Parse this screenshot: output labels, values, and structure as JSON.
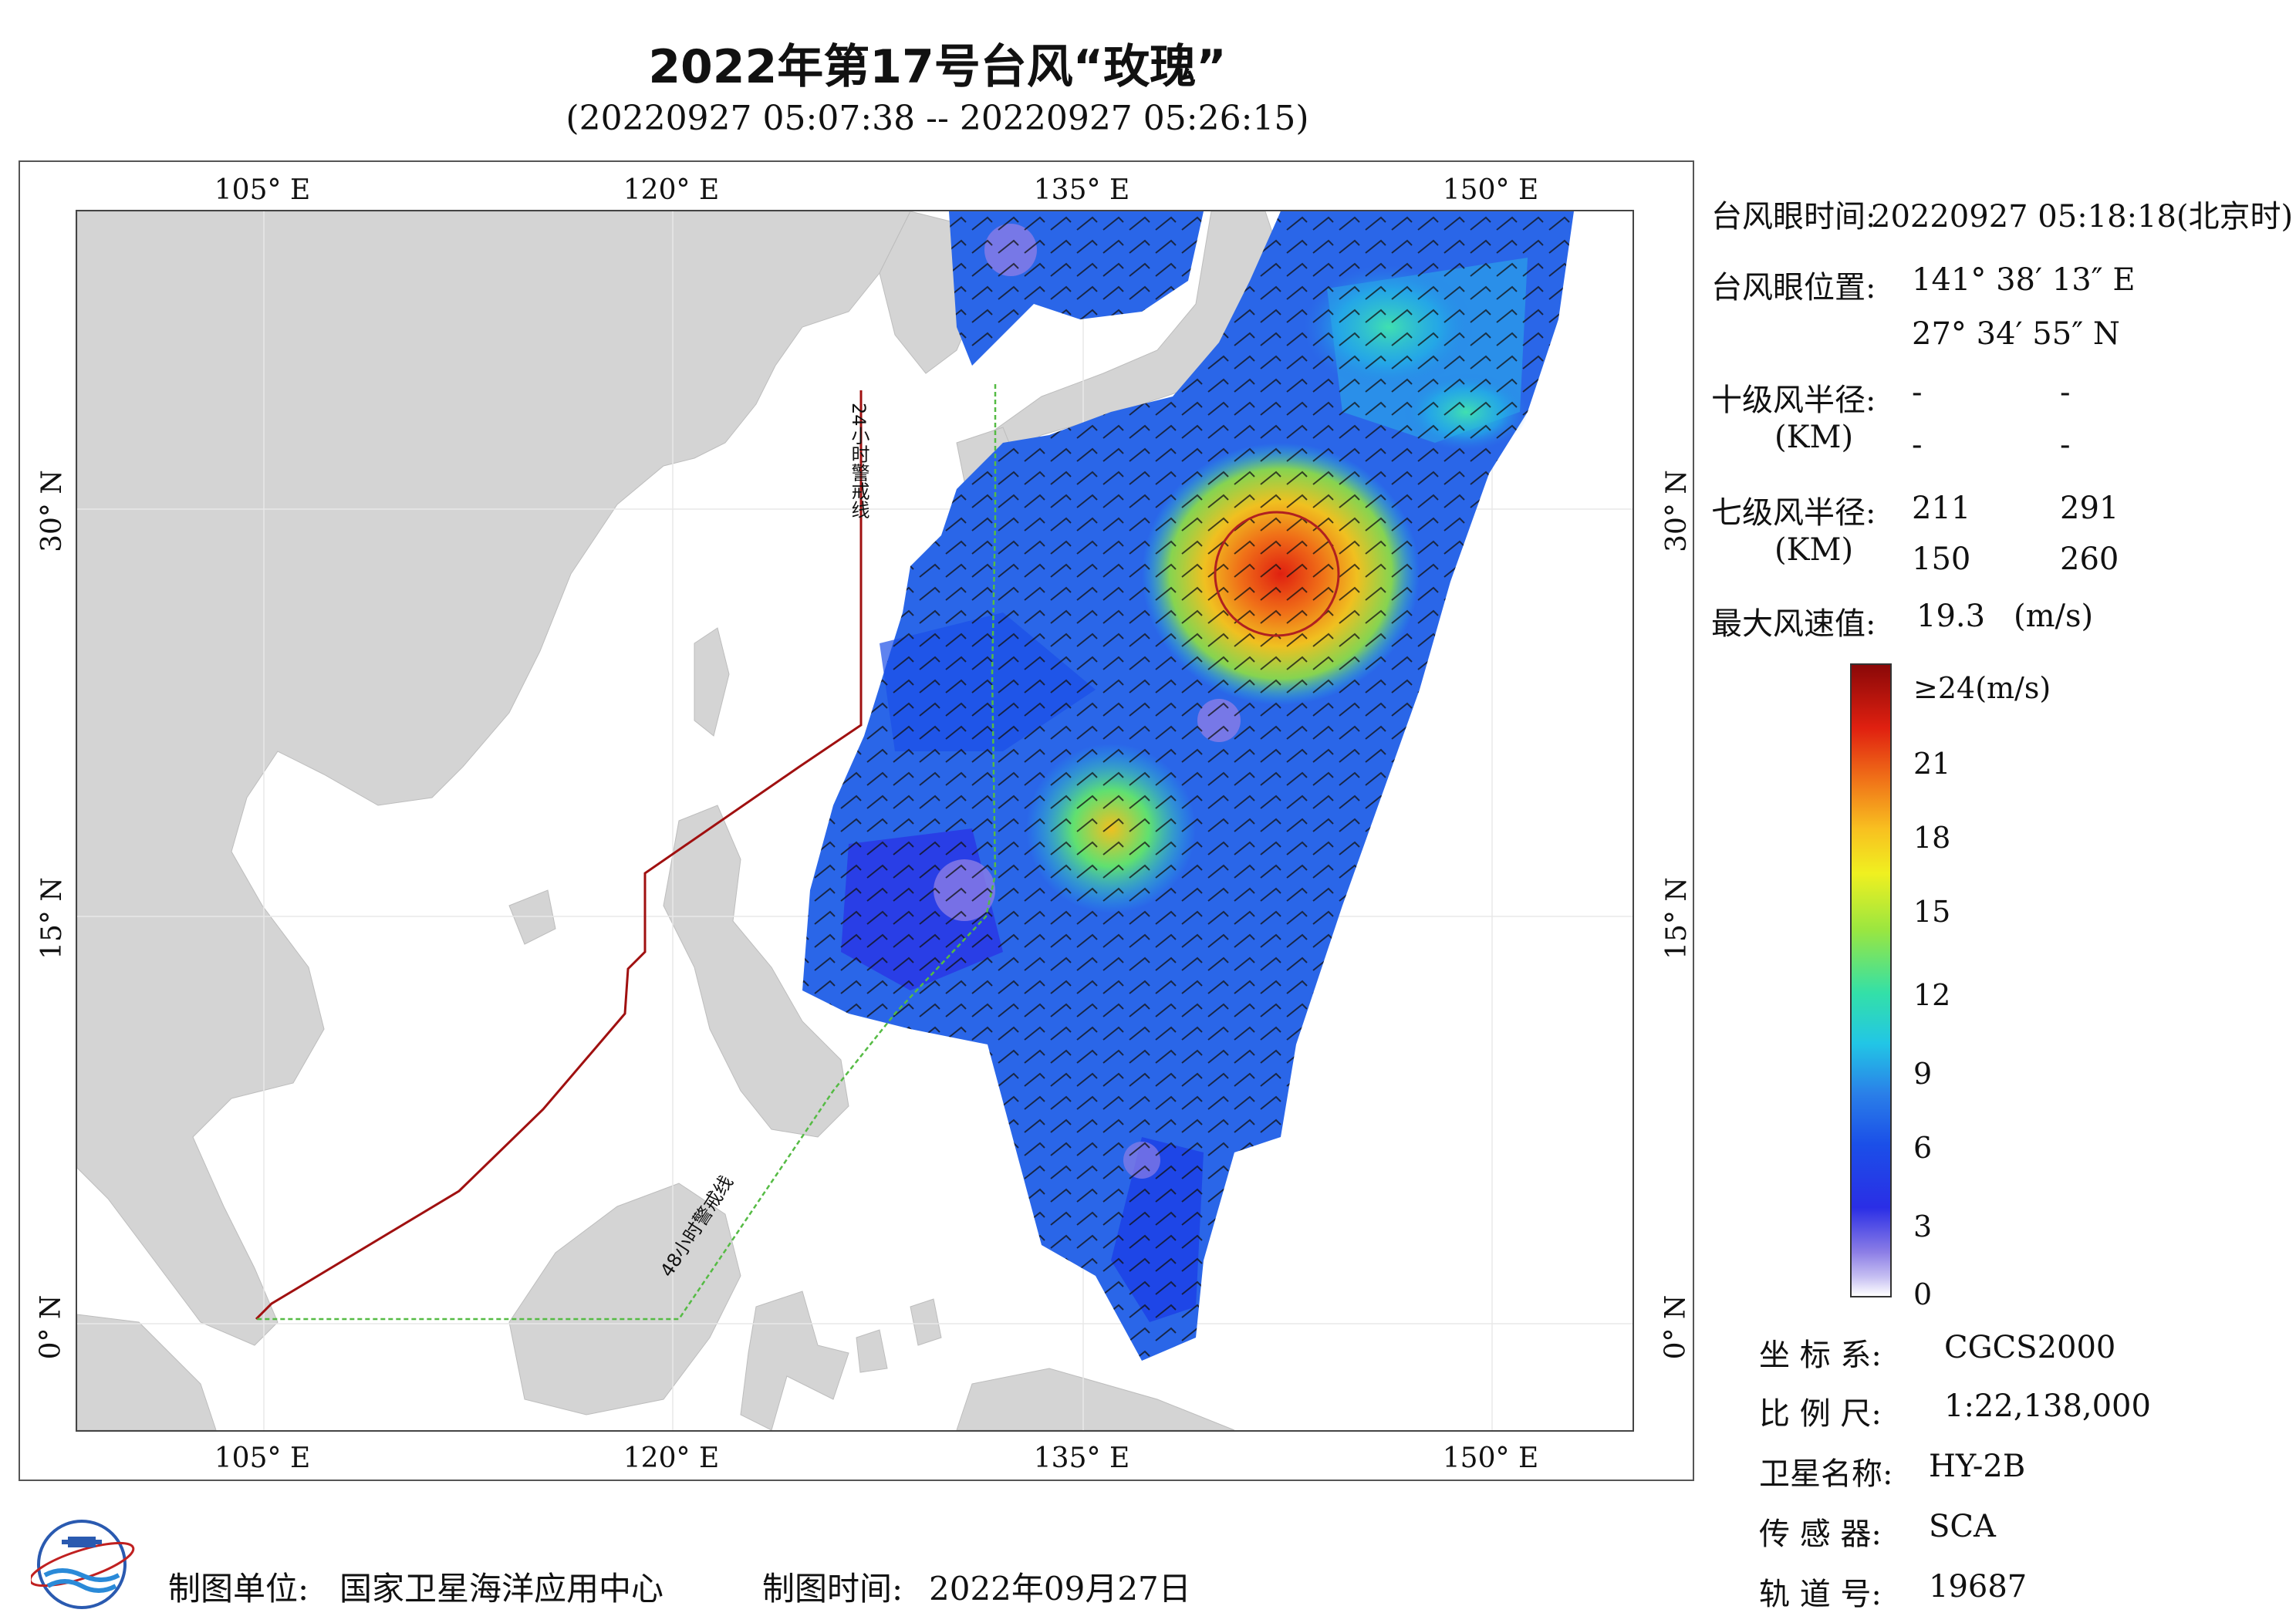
{
  "header": {
    "title": "2022年第17号台风“玫瑰”",
    "subtitle": "(20220927 05:07:38 -- 20220927 05:26:15)"
  },
  "map": {
    "lon_labels": [
      "105° E",
      "120° E",
      "135° E",
      "150° E"
    ],
    "lat_labels": [
      "30° N",
      "15° N",
      "0° N"
    ],
    "warning_24h": "24小时警戒线",
    "warning_48h": "48小时警戒线"
  },
  "info": {
    "eye_time_label": "台风眼时间:",
    "eye_time_value": "20220927 05:18:18(北京时)",
    "eye_pos_label": "台风眼位置:",
    "eye_lon": "141° 38′ 13″ E",
    "eye_lat": "27° 34′ 55″ N",
    "r10_label": "十级风半径:",
    "r10_unit": "(KM)",
    "r10_values": [
      "-",
      "-",
      "-",
      "-"
    ],
    "r7_label": "七级风半径:",
    "r7_unit": "(KM)",
    "r7_values": [
      "211",
      "291",
      "150",
      "260"
    ],
    "max_wind_label": "最大风速值:",
    "max_wind_value": "19.3",
    "max_wind_unit": "(m/s)"
  },
  "colorbar": {
    "ticks": [
      "≥24(m/s)",
      "21",
      "18",
      "15",
      "12",
      "9",
      "6",
      "3",
      "0"
    ],
    "colors": [
      "#ffffff",
      "#8b7de6",
      "#2a2ee6",
      "#2a7fe8",
      "#22c6e6",
      "#9ae640",
      "#f0f020",
      "#f07018",
      "#e02010",
      "#8a0808"
    ]
  },
  "meta": {
    "coord_label": "坐 标 系:",
    "coord_value": "CGCS2000",
    "scale_label": "比 例 尺:",
    "scale_value": "1:22,138,000",
    "satellite_label": "卫星名称:",
    "satellite_value": "HY-2B",
    "sensor_label": "传 感 器:",
    "sensor_value": "SCA",
    "orbit_label": "轨 道 号:",
    "orbit_value": "19687"
  },
  "footer": {
    "org_label": "制图单位:",
    "org_value": "国家卫星海洋应用中心",
    "date_label": "制图时间:",
    "date_value": "2022年09月27日"
  }
}
